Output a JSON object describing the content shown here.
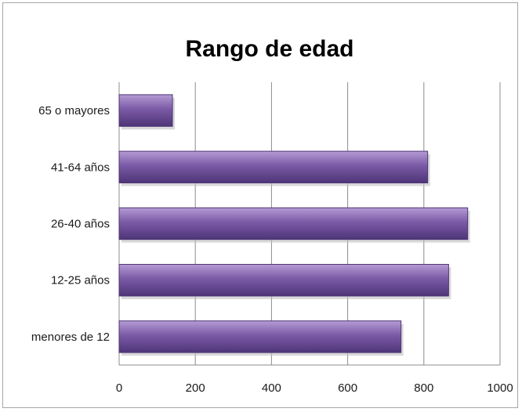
{
  "chart_data": {
    "type": "bar",
    "orientation": "horizontal",
    "title": "Rango de edad",
    "xlabel": "",
    "ylabel": "",
    "categories": [
      "menores de 12",
      "12-25 años",
      "26-40 años",
      "41-64 años",
      "65 o mayores"
    ],
    "values": [
      740,
      865,
      915,
      810,
      140
    ],
    "xlim": [
      0,
      1000
    ],
    "x_ticks": [
      "0",
      "200",
      "400",
      "600",
      "800",
      "1000"
    ],
    "grid": "vertical",
    "legend": "none",
    "bar_color": "#7b5aa6",
    "bar_color_dark": "#4e3577",
    "bar_color_light": "#b49bd4"
  }
}
